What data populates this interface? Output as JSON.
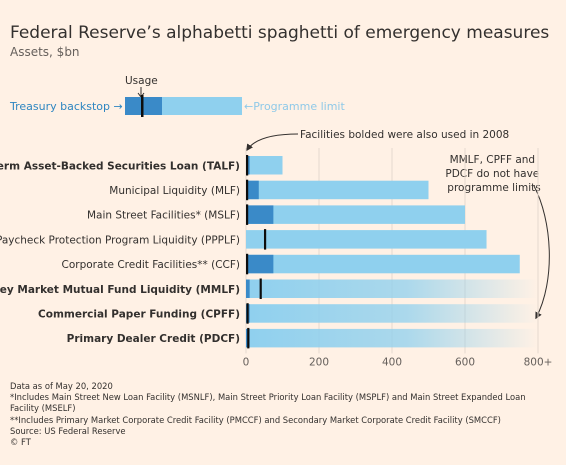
{
  "chart_data": {
    "type": "bar",
    "title": "Federal Reserve’s alphabetti spaghetti of emergency measures",
    "subtitle": "Assets, $bn",
    "categories": [
      "Term Asset-Backed Securities Loan (TALF)",
      "Municipal Liquidity (MLF)",
      "Main Street Facilities* (MSLF)",
      "Paycheck Protection Program Liquidity (PPPLF)",
      "Corporate Credit Facilities** (CCF)",
      "Money Market Mutual Fund Liquidity (MMLF)",
      "Commercial Paper Funding (CPFF)",
      "Primary Dealer Credit (PDCF)"
    ],
    "bold_categories": [
      true,
      false,
      false,
      false,
      false,
      true,
      true,
      true
    ],
    "series": [
      {
        "name": "Programme limit",
        "values": [
          100,
          500,
          600,
          659,
          750,
          null,
          null,
          null
        ]
      },
      {
        "name": "Treasury backstop",
        "values": [
          10,
          35,
          75,
          0,
          75,
          10,
          10,
          10
        ]
      },
      {
        "name": "Usage",
        "values": [
          0,
          0,
          0,
          52,
          0,
          40,
          4,
          6
        ]
      }
    ],
    "xlim": [
      0,
      800
    ],
    "xticks": [
      "0",
      "200",
      "400",
      "600",
      "800+"
    ],
    "grid": true,
    "annotations": {
      "usage": "Usage",
      "treasury_backstop": "Treasury backstop →",
      "programme_limit": "←Programme limit",
      "bolded_note": "Facilities bolded were also used in 2008",
      "no_limit_note": [
        "MMLF, CPFF and",
        "PDCF do not have",
        "programme limits"
      ]
    },
    "colors": {
      "background": "#fff1e5",
      "limit": "#8fd0ee",
      "backstop": "#3a8ac8",
      "usage": "#0d0d0d",
      "grid": "#e6d9ce"
    }
  },
  "footer": {
    "date": "Data as of May 20, 2020",
    "note1": "*Includes Main Street New Loan Facility (MSNLF), Main Street Priority Loan Facility (MSPLF) and Main Street Expanded Loan Facility (MSELF)",
    "note2": "**Includes Primary Market Corporate Credit Facility (PMCCF) and Secondary Market Corporate Credit Facility (SMCCF)",
    "source": "Source: US Federal Reserve",
    "copyright": "© FT"
  }
}
